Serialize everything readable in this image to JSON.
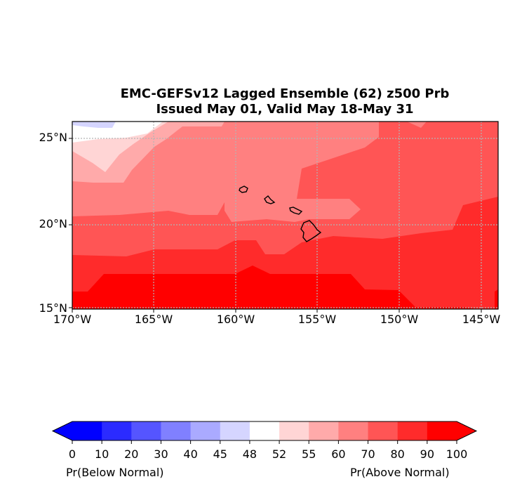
{
  "title": {
    "line1": "EMC-GEFSv12 Lagged Ensemble (62) z500 Prb",
    "line2": "Issued May 01, Valid May 18-May 31"
  },
  "map": {
    "lat_labels": [
      "25°N",
      "20°N",
      "15°N"
    ],
    "lon_labels": [
      "170°W",
      "165°W",
      "160°W",
      "155°W",
      "150°W",
      "145°W"
    ],
    "extent": {
      "lon": [
        -170,
        -144
      ],
      "lat": [
        15,
        26
      ]
    }
  },
  "colorbar": {
    "ticks": [
      "0",
      "10",
      "20",
      "30",
      "40",
      "45",
      "48",
      "52",
      "55",
      "60",
      "70",
      "80",
      "90",
      "100"
    ],
    "colors": [
      "#0000ff",
      "#2b2bff",
      "#5555ff",
      "#8080ff",
      "#aaaaff",
      "#d5d5ff",
      "#ffffff",
      "#ffd5d5",
      "#ffaaaa",
      "#ff8080",
      "#ff5555",
      "#ff2b2b",
      "#ff0000"
    ],
    "below_label": "Pr(Below Normal)",
    "above_label": "Pr(Above Normal)"
  }
}
